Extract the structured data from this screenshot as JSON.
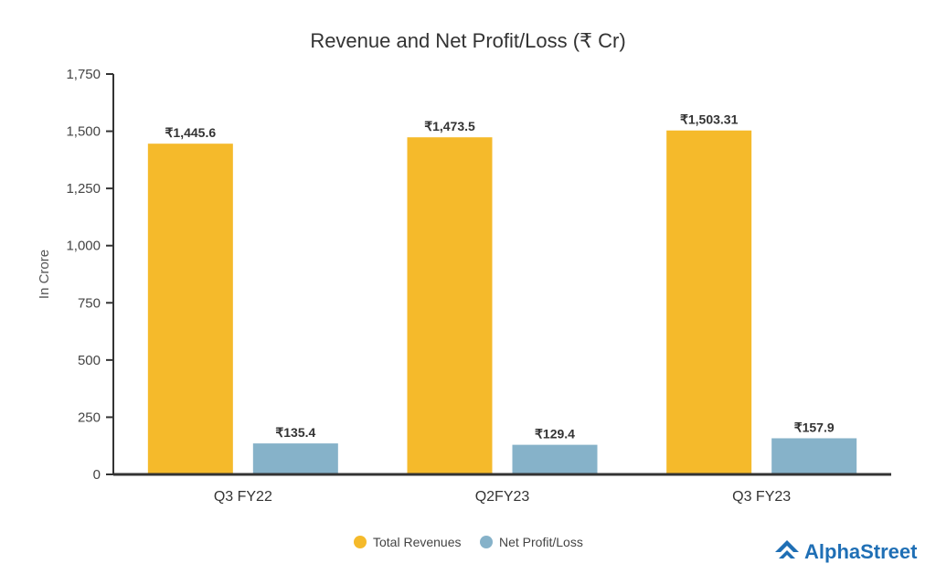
{
  "chart_data": {
    "type": "bar",
    "title": "Revenue and Net Profit/Loss (₹ Cr)",
    "ylabel": "In Crore",
    "xlabel": "",
    "ylim": [
      0,
      1750
    ],
    "yticks": [
      0,
      250,
      500,
      750,
      1000,
      1250,
      1500,
      1750
    ],
    "ytick_labels": [
      "0",
      "250",
      "500",
      "750",
      "1,000",
      "1,250",
      "1,500",
      "1,750"
    ],
    "categories": [
      "Q3 FY22",
      "Q2FY23",
      "Q3 FY23"
    ],
    "series": [
      {
        "name": "Total Revenues",
        "color": "#F5BA2B",
        "values": [
          1445.6,
          1473.5,
          1503.31
        ],
        "labels": [
          "₹1,445.6",
          "₹1,473.5",
          "₹1,503.31"
        ]
      },
      {
        "name": "Net Profit/Loss",
        "color": "#86B2C9",
        "values": [
          135.4,
          129.4,
          157.9
        ],
        "labels": [
          "₹135.4",
          "₹129.4",
          "₹157.9"
        ]
      }
    ],
    "grid": false,
    "legend_position": "bottom-center"
  },
  "branding": {
    "name": "AlphaStreet",
    "color": "#1F6FB5",
    "icon": "alphastreet-logo-icon"
  }
}
